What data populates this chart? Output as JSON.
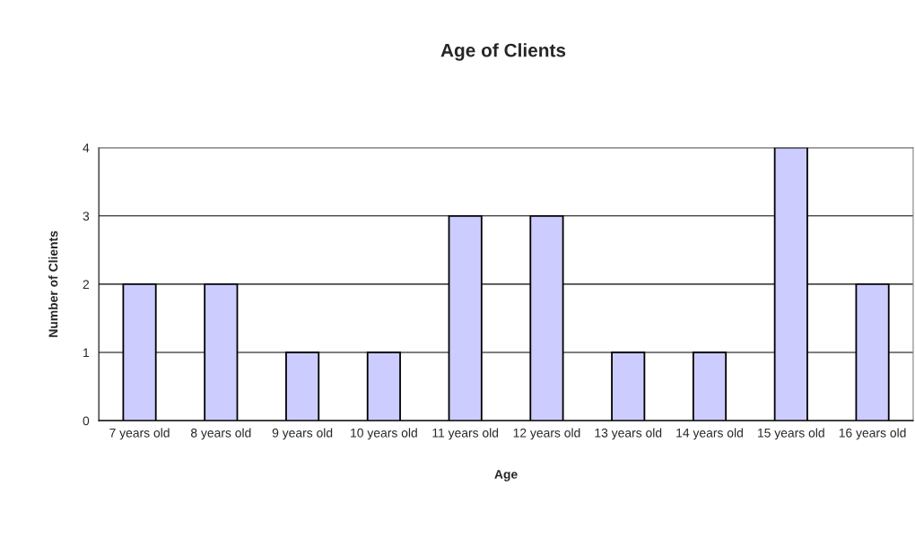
{
  "chart_data": {
    "type": "bar",
    "title": "Age of Clients",
    "xlabel": "Age",
    "ylabel": "Number of Clients",
    "categories": [
      "7 years old",
      "8 years old",
      "9 years old",
      "10 years old",
      "11 years old",
      "12 years old",
      "13 years old",
      "14 years old",
      "15 years old",
      "16 years old"
    ],
    "values": [
      2,
      2,
      1,
      1,
      3,
      3,
      1,
      1,
      4,
      2
    ],
    "color": "#ccccff",
    "ylim": [
      0,
      4
    ],
    "yticks": [
      0,
      1,
      2,
      3,
      4
    ],
    "grid": "y",
    "legend": false
  }
}
